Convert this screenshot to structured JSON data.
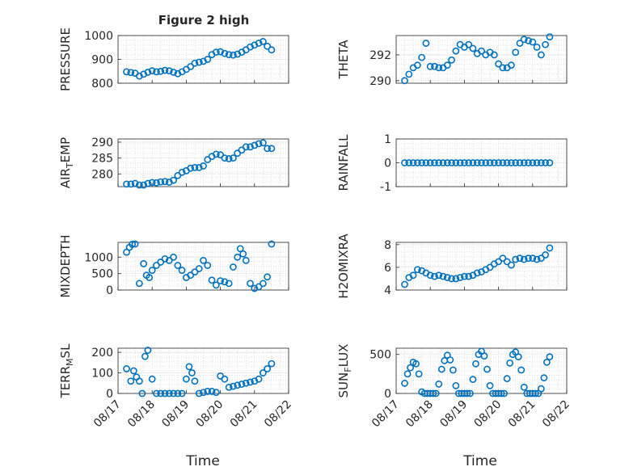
{
  "figure_title": "Figure 2 high",
  "chart_data": [
    {
      "id": "pressure",
      "type": "scatter",
      "title": "Figure 2 high",
      "ylabel": "PRESSURE",
      "xlim": [
        "08/17",
        "08/22"
      ],
      "ylim": [
        800,
        1000
      ],
      "yticks": [
        "800",
        "900",
        "1000"
      ],
      "grid": "on (dotted minor)",
      "x": [
        "08/17 06:00",
        "08/17 09:00",
        "08/17 12:00",
        "08/17 15:00",
        "08/17 18:00",
        "08/17 21:00",
        "08/18 00:00",
        "08/18 03:00",
        "08/18 06:00",
        "08/18 09:00",
        "08/18 12:00",
        "08/18 15:00",
        "08/18 18:00",
        "08/18 21:00",
        "08/19 00:00",
        "08/19 03:00",
        "08/19 06:00",
        "08/19 09:00",
        "08/19 12:00",
        "08/19 15:00",
        "08/19 18:00",
        "08/19 21:00",
        "08/20 00:00",
        "08/20 03:00",
        "08/20 06:00",
        "08/20 09:00",
        "08/20 12:00",
        "08/20 15:00",
        "08/20 18:00",
        "08/20 21:00",
        "08/21 00:00",
        "08/21 03:00",
        "08/21 06:00",
        "08/21 09:00",
        "08/21 12:00"
      ],
      "y": [
        848,
        845,
        842,
        830,
        838,
        846,
        852,
        848,
        850,
        854,
        852,
        846,
        840,
        848,
        858,
        870,
        884,
        888,
        892,
        900,
        920,
        930,
        932,
        925,
        920,
        918,
        922,
        930,
        940,
        952,
        960,
        968,
        975,
        955,
        940
      ]
    },
    {
      "id": "theta",
      "type": "scatter",
      "ylabel": "THETA",
      "xlim": [
        "08/17",
        "08/22"
      ],
      "ylim": [
        289.8,
        293.5
      ],
      "yticks": [
        "290",
        "292"
      ],
      "grid": "on (dotted minor)",
      "x": [
        "08/17 06:00",
        "08/17 09:00",
        "08/17 12:00",
        "08/17 15:00",
        "08/17 18:00",
        "08/17 21:00",
        "08/18 00:00",
        "08/18 03:00",
        "08/18 06:00",
        "08/18 09:00",
        "08/18 12:00",
        "08/18 15:00",
        "08/18 18:00",
        "08/18 21:00",
        "08/19 00:00",
        "08/19 03:00",
        "08/19 06:00",
        "08/19 09:00",
        "08/19 12:00",
        "08/19 15:00",
        "08/19 18:00",
        "08/19 21:00",
        "08/20 00:00",
        "08/20 03:00",
        "08/20 06:00",
        "08/20 09:00",
        "08/20 12:00",
        "08/20 15:00",
        "08/20 18:00",
        "08/20 21:00",
        "08/21 00:00",
        "08/21 03:00",
        "08/21 06:00",
        "08/21 09:00",
        "08/21 12:00"
      ],
      "y": [
        290.0,
        290.5,
        291.0,
        291.2,
        291.8,
        292.9,
        291.1,
        291.1,
        291.0,
        291.0,
        291.2,
        291.6,
        292.3,
        292.8,
        292.6,
        292.8,
        292.5,
        292.1,
        292.3,
        292.0,
        292.2,
        292.0,
        291.3,
        291.0,
        291.0,
        291.2,
        292.2,
        292.9,
        293.2,
        293.1,
        293.0,
        292.6,
        292.0,
        292.8,
        293.4
      ]
    },
    {
      "id": "air_temp",
      "type": "scatter",
      "ylabel": "AIR_TEMP",
      "xlim": [
        "08/17",
        "08/22"
      ],
      "ylim": [
        276,
        291
      ],
      "yticks": [
        "280",
        "285",
        "290"
      ],
      "grid": "on (dotted minor)",
      "x": [
        "08/17 06:00",
        "08/17 09:00",
        "08/17 12:00",
        "08/17 15:00",
        "08/17 18:00",
        "08/17 21:00",
        "08/18 00:00",
        "08/18 03:00",
        "08/18 06:00",
        "08/18 09:00",
        "08/18 12:00",
        "08/18 15:00",
        "08/18 18:00",
        "08/18 21:00",
        "08/19 00:00",
        "08/19 03:00",
        "08/19 06:00",
        "08/19 09:00",
        "08/19 12:00",
        "08/19 15:00",
        "08/19 18:00",
        "08/19 21:00",
        "08/20 00:00",
        "08/20 03:00",
        "08/20 06:00",
        "08/20 09:00",
        "08/20 12:00",
        "08/20 15:00",
        "08/20 18:00",
        "08/20 21:00",
        "08/21 00:00",
        "08/21 03:00",
        "08/21 06:00",
        "08/21 09:00",
        "08/21 12:00"
      ],
      "y": [
        276.8,
        276.8,
        277.0,
        276.5,
        276.5,
        277.0,
        277.3,
        277.2,
        277.5,
        277.6,
        277.4,
        278.0,
        279.5,
        280.5,
        281.0,
        281.8,
        282.0,
        282.0,
        282.5,
        284.5,
        285.5,
        286.2,
        286.0,
        285.0,
        284.8,
        285.0,
        286.5,
        287.5,
        288.5,
        288.5,
        289.0,
        289.5,
        289.8,
        288.0,
        288.0
      ]
    },
    {
      "id": "rainfall",
      "type": "scatter",
      "ylabel": "RAINFALL",
      "xlim": [
        "08/17",
        "08/22"
      ],
      "ylim": [
        -1,
        1
      ],
      "yticks": [
        "-1",
        "0",
        "1"
      ],
      "grid": "on (dotted minor)",
      "x": [
        "08/17 06:00",
        "08/17 09:00",
        "08/17 12:00",
        "08/17 15:00",
        "08/17 18:00",
        "08/17 21:00",
        "08/18 00:00",
        "08/18 03:00",
        "08/18 06:00",
        "08/18 09:00",
        "08/18 12:00",
        "08/18 15:00",
        "08/18 18:00",
        "08/18 21:00",
        "08/19 00:00",
        "08/19 03:00",
        "08/19 06:00",
        "08/19 09:00",
        "08/19 12:00",
        "08/19 15:00",
        "08/19 18:00",
        "08/19 21:00",
        "08/20 00:00",
        "08/20 03:00",
        "08/20 06:00",
        "08/20 09:00",
        "08/20 12:00",
        "08/20 15:00",
        "08/20 18:00",
        "08/20 21:00",
        "08/21 00:00",
        "08/21 03:00",
        "08/21 06:00",
        "08/21 09:00",
        "08/21 12:00"
      ],
      "y": [
        0,
        0,
        0,
        0,
        0,
        0,
        0,
        0,
        0,
        0,
        0,
        0,
        0,
        0,
        0,
        0,
        0,
        0,
        0,
        0,
        0,
        0,
        0,
        0,
        0,
        0,
        0,
        0,
        0,
        0,
        0,
        0,
        0,
        0,
        0
      ]
    },
    {
      "id": "mixdepth",
      "type": "scatter",
      "ylabel": "MIXDEPTH",
      "xlim": [
        "08/17",
        "08/22"
      ],
      "ylim": [
        0,
        1450
      ],
      "yticks": [
        "0",
        "500",
        "1000"
      ],
      "grid": "on (dotted minor)",
      "x": [
        "08/17 06:00",
        "08/17 08:00",
        "08/17 10:00",
        "08/17 12:00",
        "08/17 15:00",
        "08/17 18:00",
        "08/17 20:00",
        "08/17 22:00",
        "08/18 00:00",
        "08/18 03:00",
        "08/18 06:00",
        "08/18 09:00",
        "08/18 12:00",
        "08/18 15:00",
        "08/18 18:00",
        "08/18 21:00",
        "08/19 00:00",
        "08/19 03:00",
        "08/19 06:00",
        "08/19 09:00",
        "08/19 12:00",
        "08/19 15:00",
        "08/19 18:00",
        "08/19 21:00",
        "08/20 00:00",
        "08/20 03:00",
        "08/20 06:00",
        "08/20 09:00",
        "08/20 12:00",
        "08/20 14:00",
        "08/20 16:00",
        "08/20 18:00",
        "08/20 21:00",
        "08/21 00:00",
        "08/21 03:00",
        "08/21 06:00",
        "08/21 09:00",
        "08/21 12:00"
      ],
      "y": [
        1150,
        1300,
        1390,
        1400,
        200,
        800,
        450,
        380,
        600,
        750,
        850,
        950,
        900,
        1000,
        750,
        600,
        380,
        450,
        550,
        650,
        900,
        750,
        300,
        150,
        280,
        250,
        200,
        700,
        1000,
        1260,
        1100,
        900,
        200,
        50,
        100,
        200,
        400,
        1400
      ]
    },
    {
      "id": "h2omixra",
      "type": "scatter",
      "ylabel": "H2OMIXRA",
      "xlim": [
        "08/17",
        "08/22"
      ],
      "ylim": [
        4,
        8.2
      ],
      "yticks": [
        "4",
        "6",
        "8"
      ],
      "grid": "on (dotted minor)",
      "x": [
        "08/17 06:00",
        "08/17 09:00",
        "08/17 12:00",
        "08/17 15:00",
        "08/17 18:00",
        "08/17 21:00",
        "08/18 00:00",
        "08/18 03:00",
        "08/18 06:00",
        "08/18 09:00",
        "08/18 12:00",
        "08/18 15:00",
        "08/18 18:00",
        "08/18 21:00",
        "08/19 00:00",
        "08/19 03:00",
        "08/19 06:00",
        "08/19 09:00",
        "08/19 12:00",
        "08/19 15:00",
        "08/19 18:00",
        "08/19 21:00",
        "08/20 00:00",
        "08/20 03:00",
        "08/20 06:00",
        "08/20 09:00",
        "08/20 12:00",
        "08/20 15:00",
        "08/20 18:00",
        "08/20 21:00",
        "08/21 00:00",
        "08/21 03:00",
        "08/21 06:00",
        "08/21 09:00",
        "08/21 12:00"
      ],
      "y": [
        4.5,
        5.1,
        5.3,
        5.8,
        5.7,
        5.5,
        5.3,
        5.2,
        5.3,
        5.2,
        5.1,
        5.0,
        5.0,
        5.1,
        5.2,
        5.2,
        5.3,
        5.5,
        5.6,
        5.8,
        6.0,
        6.3,
        6.5,
        6.8,
        6.5,
        6.2,
        6.7,
        6.8,
        6.7,
        6.8,
        6.8,
        6.7,
        6.8,
        7.1,
        7.7
      ]
    },
    {
      "id": "terr_msl",
      "type": "scatter",
      "ylabel": "TERR_MSL",
      "xlim": [
        "08/17",
        "08/22"
      ],
      "ylim": [
        0,
        220
      ],
      "yticks": [
        "0",
        "100",
        "200"
      ],
      "grid": "on (dotted minor)",
      "x": [
        "08/17 06:00",
        "08/17 09:00",
        "08/17 11:00",
        "08/17 13:00",
        "08/17 15:00",
        "08/17 17:00",
        "08/17 19:00",
        "08/17 21:00",
        "08/18 00:00",
        "08/18 03:00",
        "08/18 06:00",
        "08/18 09:00",
        "08/18 12:00",
        "08/18 15:00",
        "08/18 18:00",
        "08/18 21:00",
        "08/19 00:00",
        "08/19 02:00",
        "08/19 04:00",
        "08/19 06:00",
        "08/19 09:00",
        "08/19 12:00",
        "08/19 15:00",
        "08/19 18:00",
        "08/19 21:00",
        "08/20 00:00",
        "08/20 03:00",
        "08/20 06:00",
        "08/20 09:00",
        "08/20 12:00",
        "08/20 15:00",
        "08/20 18:00",
        "08/20 21:00",
        "08/21 00:00",
        "08/21 03:00",
        "08/21 06:00",
        "08/21 09:00",
        "08/21 12:00"
      ],
      "y": [
        120,
        60,
        110,
        80,
        60,
        0,
        180,
        210,
        70,
        0,
        0,
        0,
        0,
        0,
        0,
        0,
        70,
        130,
        100,
        60,
        0,
        5,
        10,
        10,
        5,
        85,
        70,
        30,
        35,
        40,
        45,
        50,
        55,
        60,
        70,
        100,
        120,
        145
      ]
    },
    {
      "id": "sun_flux",
      "type": "scatter",
      "ylabel": "SUN_FLUX",
      "xlim": [
        "08/17",
        "08/22"
      ],
      "ylim": [
        0,
        580
      ],
      "yticks": [
        "0",
        "500"
      ],
      "grid": "on (dotted minor)",
      "x": [
        "08/17 06:00",
        "08/17 08:00",
        "08/17 10:00",
        "08/17 12:00",
        "08/17 14:00",
        "08/17 16:00",
        "08/17 18:00",
        "08/17 20:00",
        "08/17 22:00",
        "08/18 00:00",
        "08/18 02:00",
        "08/18 04:00",
        "08/18 06:00",
        "08/18 08:00",
        "08/18 10:00",
        "08/18 12:00",
        "08/18 14:00",
        "08/18 16:00",
        "08/18 18:00",
        "08/18 20:00",
        "08/18 22:00",
        "08/19 00:00",
        "08/19 02:00",
        "08/19 04:00",
        "08/19 06:00",
        "08/19 08:00",
        "08/19 10:00",
        "08/19 12:00",
        "08/19 14:00",
        "08/19 16:00",
        "08/19 18:00",
        "08/19 20:00",
        "08/19 22:00",
        "08/20 00:00",
        "08/20 02:00",
        "08/20 04:00",
        "08/20 06:00",
        "08/20 08:00",
        "08/20 10:00",
        "08/20 12:00",
        "08/20 14:00",
        "08/20 16:00",
        "08/20 18:00",
        "08/20 20:00",
        "08/20 22:00",
        "08/21 00:00",
        "08/21 02:00",
        "08/21 04:00",
        "08/21 06:00",
        "08/21 08:00",
        "08/21 10:00",
        "08/21 12:00"
      ],
      "y": [
        130,
        250,
        330,
        400,
        380,
        250,
        20,
        0,
        0,
        0,
        0,
        0,
        120,
        310,
        420,
        490,
        430,
        300,
        100,
        0,
        0,
        0,
        0,
        0,
        180,
        380,
        500,
        540,
        480,
        310,
        100,
        0,
        0,
        0,
        0,
        0,
        190,
        390,
        500,
        530,
        470,
        300,
        80,
        0,
        0,
        0,
        0,
        0,
        60,
        200,
        400,
        470
      ]
    }
  ],
  "x_tick_labels": [
    "08/17",
    "08/18",
    "08/19",
    "08/20",
    "08/21",
    "08/22"
  ],
  "x_label": "Time",
  "marker_color": "#0072BD"
}
